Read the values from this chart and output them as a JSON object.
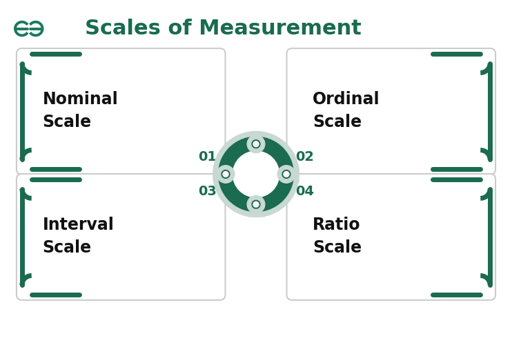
{
  "title": "Scales of Measurement",
  "title_color": "#1a6b50",
  "title_fontsize": 22,
  "bg_color": "#ffffff",
  "card_bg": "#ffffff",
  "card_border": "#1a6b50",
  "number_color": "#1a6b50",
  "label_color": "#111111",
  "ring_color_dark": "#1a6b50",
  "ring_color_light": "#c8d8d2",
  "logo_color": "#1a7a5e",
  "boxes": [
    {
      "label": "Nominal\nScale",
      "number": "01",
      "side": "left",
      "top": true
    },
    {
      "label": "Ordinal\nScale",
      "number": "02",
      "side": "right",
      "top": true
    },
    {
      "label": "Interval\nScale",
      "number": "03",
      "side": "left",
      "top": false
    },
    {
      "label": "Ratio\nScale",
      "number": "04",
      "side": "right",
      "top": false
    }
  ]
}
